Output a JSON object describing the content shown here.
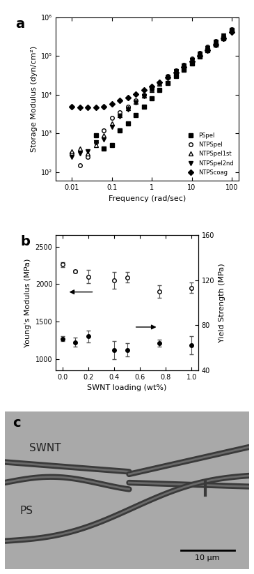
{
  "chart_data": [
    {
      "type": "scatter",
      "title": "a",
      "x_label": "Frequency (rad/sec)",
      "y_label": "Storage Modulus (dyn/cm²)",
      "log": true,
      "legend": "lower right",
      "x": [
        0.01,
        0.0158,
        0.0251,
        0.0398,
        0.0631,
        0.1,
        0.158,
        0.251,
        0.398,
        0.631,
        1,
        1.58,
        2.51,
        3.98,
        6.31,
        10,
        15.8,
        25.1,
        39.8,
        63.1,
        100
      ],
      "xlim": [
        0.004,
        150
      ],
      "xticks": [
        0.01,
        0.1,
        1,
        10,
        100
      ],
      "ylim": [
        60,
        1000000
      ],
      "yticks": [
        {
          "value": 100,
          "label": "10²"
        },
        {
          "value": 1000,
          "label": "10³"
        },
        {
          "value": 10000,
          "label": "10⁴"
        },
        {
          "value": 100000,
          "label": "10⁵"
        },
        {
          "value": 1000000,
          "label": "10⁶"
        }
      ],
      "series": [
        {
          "name": "PSpel",
          "color": "#000000",
          "marker": "square",
          "values": [
            null,
            null,
            null,
            900,
            400,
            500,
            1200,
            1800,
            3000,
            5000,
            8000,
            13000,
            20000,
            30000,
            45000,
            65000,
            95000,
            140000,
            200000,
            290000,
            450000
          ]
        },
        {
          "name": "NTPSpel",
          "color": "#000000",
          "marker": "circle_open",
          "values": [
            300,
            150,
            250,
            600,
            1200,
            2500,
            3500,
            5000,
            7000,
            10000,
            14000,
            20000,
            30000,
            42000,
            60000,
            85000,
            120000,
            170000,
            240000,
            340000,
            480000
          ]
        },
        {
          "name": "NTPSpel1st",
          "color": "#000000",
          "marker": "triangle_up_open",
          "values": [
            350,
            400,
            300,
            500,
            900,
            1800,
            3000,
            4500,
            6500,
            9500,
            13500,
            19500,
            29000,
            41000,
            58000,
            82000,
            118000,
            165000,
            235000,
            335000,
            470000
          ]
        },
        {
          "name": "NTPSpel2nd",
          "color": "#000000",
          "marker": "triangle_down",
          "values": [
            250,
            300,
            350,
            600,
            700,
            1500,
            2800,
            4200,
            6200,
            9000,
            13000,
            19000,
            28000,
            40000,
            57000,
            80000,
            115000,
            160000,
            230000,
            330000,
            460000
          ]
        },
        {
          "name": "NTPScoag",
          "color": "#000000",
          "marker": "diamond",
          "values": [
            5000,
            4800,
            4700,
            4800,
            5000,
            5800,
            7000,
            8500,
            10500,
            13000,
            16500,
            21000,
            28000,
            38000,
            52000,
            72000,
            100000,
            140000,
            200000,
            280000,
            420000
          ]
        }
      ]
    },
    {
      "type": "scatter",
      "title": "b",
      "x_label": "SWNT loading (wt%)",
      "y_label": "Young's Modulus (MPa)",
      "y2_label": "Yield Strength (MPa)",
      "x": [
        0.0,
        0.1,
        0.2,
        0.4,
        0.5,
        0.75,
        1.0
      ],
      "xlim": [
        -0.05,
        1.05
      ],
      "xticks": [
        0.0,
        0.2,
        0.4,
        0.6,
        0.8,
        1.0
      ],
      "ylim": [
        850,
        2650
      ],
      "yticks": [
        1000,
        1500,
        2000,
        2500
      ],
      "y2lim": [
        40,
        160
      ],
      "y2ticks": [
        40,
        80,
        120,
        160
      ],
      "series": [
        {
          "name": "Young's Modulus",
          "color": "#000000",
          "marker": "circle_open",
          "values": [
            2260,
            2170,
            2100,
            2050,
            2090,
            1900,
            1950
          ],
          "errors": [
            30,
            20,
            90,
            110,
            70,
            80,
            70
          ]
        },
        {
          "name": "Yield Strength",
          "color": "#000000",
          "marker": "circle",
          "axis": "y2",
          "values": [
            68,
            65,
            70,
            58,
            58,
            64,
            62
          ],
          "errors": [
            2,
            4,
            5,
            8,
            6,
            3,
            8
          ]
        }
      ]
    }
  ],
  "micrograph": {
    "title": "c",
    "labels": [
      "SWNT",
      "PS"
    ],
    "scale_bar": "10 μm"
  }
}
